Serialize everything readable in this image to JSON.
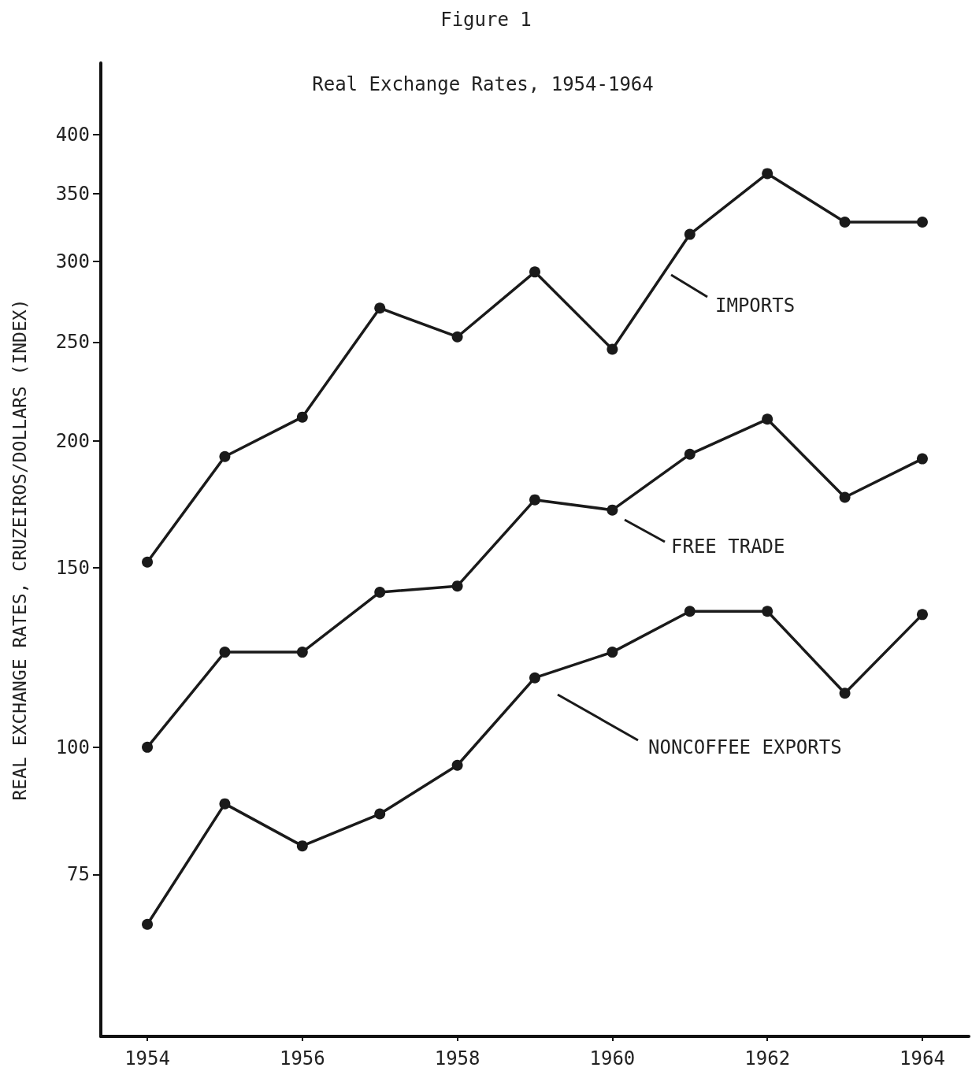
{
  "chart_data": {
    "type": "line",
    "title": "Figure 1",
    "subtitle": "Real Exchange Rates, 1954-1964",
    "ylabel": "REAL EXCHANGE RATES, CRUZEIROS/DOLLARS (INDEX)",
    "x": [
      1954,
      1955,
      1956,
      1957,
      1958,
      1959,
      1960,
      1961,
      1962,
      1963,
      1964
    ],
    "series": [
      {
        "name": "IMPORTS",
        "color": "#1a1a1a",
        "values": [
          152,
          193,
          211,
          270,
          253,
          293,
          246,
          319,
          366,
          328,
          328
        ]
      },
      {
        "name": "FREE TRADE",
        "color": "#1a1a1a",
        "values": [
          100,
          124,
          124,
          142,
          144,
          175,
          171,
          194,
          210,
          176,
          192
        ]
      },
      {
        "name": "NONCOFFEE EXPORTS",
        "color": "#1a1a1a",
        "values": [
          67,
          88,
          80,
          86,
          96,
          117,
          124,
          136,
          136,
          113,
          135
        ]
      }
    ],
    "xlim": [
      1953.4,
      1964.6
    ],
    "xticks": [
      1954,
      1956,
      1958,
      1960,
      1962,
      1964
    ],
    "ylim": [
      52,
      470
    ],
    "yticks": [
      75,
      100,
      150,
      200,
      250,
      300,
      350,
      400
    ],
    "log": "y",
    "grid": false,
    "legend": false,
    "marker": "circle",
    "line_style": "solid"
  }
}
